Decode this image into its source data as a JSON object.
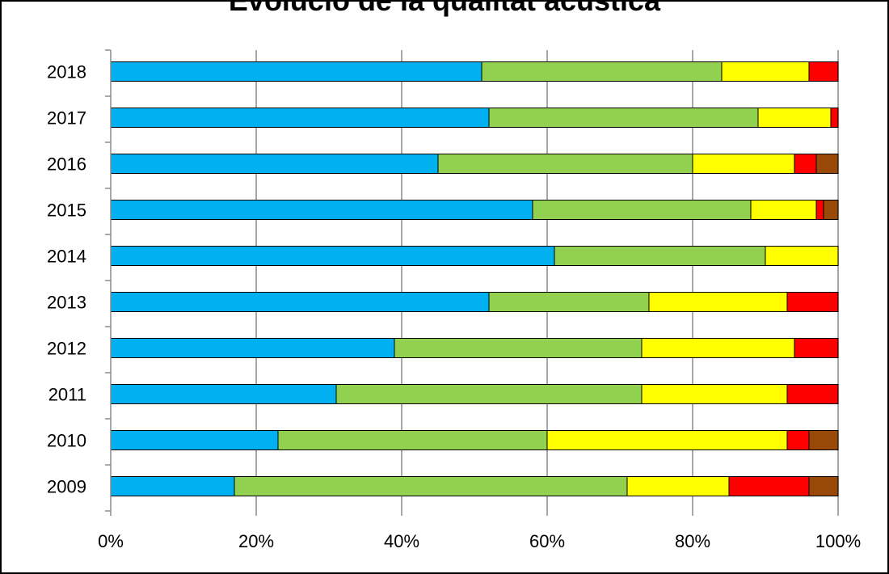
{
  "chart_data": {
    "type": "bar",
    "orientation": "horizontal",
    "stacked": "percent",
    "title": "Evolució de la qualitat acústica",
    "categories": [
      "2009",
      "2010",
      "2011",
      "2012",
      "2013",
      "2014",
      "2015",
      "2016",
      "2017",
      "2018"
    ],
    "series": [
      {
        "color": "#00b0f0",
        "values": [
          17,
          23,
          31,
          39,
          52,
          61,
          58,
          45,
          52,
          51
        ]
      },
      {
        "color": "#92d050",
        "values": [
          54,
          37,
          42,
          34,
          22,
          29,
          30,
          35,
          37,
          33
        ]
      },
      {
        "color": "#ffff00",
        "values": [
          14,
          33,
          20,
          21,
          19,
          10,
          9,
          14,
          10,
          12
        ]
      },
      {
        "color": "#ff0000",
        "values": [
          11,
          3,
          7,
          6,
          7,
          0,
          1,
          3,
          1,
          4
        ]
      },
      {
        "color": "#984807",
        "values": [
          4,
          4,
          0,
          0,
          0,
          0,
          2,
          3,
          0,
          0
        ]
      }
    ],
    "xlim": [
      0,
      100
    ],
    "x_ticks": [
      "0%",
      "20%",
      "40%",
      "60%",
      "80%",
      "100%"
    ],
    "grid": "vertical",
    "legend": "none"
  }
}
